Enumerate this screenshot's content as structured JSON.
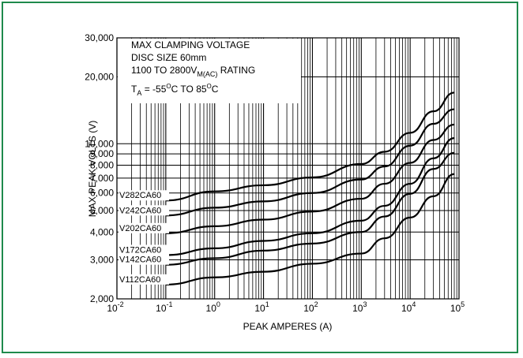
{
  "frame_color": "#1f8a4c",
  "chart_data": {
    "type": "line",
    "title_lines": [
      "MAX CLAMPING VOLTAGE",
      "DISC SIZE 60mm"
    ],
    "rating": {
      "prefix": "1100 TO 2800V",
      "sub": "M(AC)",
      "suffix": " RATING"
    },
    "temp": {
      "t": "T",
      "tsub": "A",
      "mid": " = -55",
      "sup1": "O",
      "mid2": "C TO 85",
      "sup2": "O",
      "end": "C"
    },
    "xlabel": "PEAK AMPERES (A)",
    "ylabel": "MAX PEAK VOLTS (V)",
    "xscale": "log",
    "yscale": "log",
    "xlim": [
      0.01,
      100000
    ],
    "ylim": [
      2000,
      30000
    ],
    "grid": true,
    "x_ticks": [
      {
        "base": "10",
        "exp": "-2",
        "value": 0.01
      },
      {
        "base": "10",
        "exp": "-1",
        "value": 0.1
      },
      {
        "base": "10",
        "exp": "0",
        "value": 1
      },
      {
        "base": "10",
        "exp": "1",
        "value": 10
      },
      {
        "base": "10",
        "exp": "2",
        "value": 100
      },
      {
        "base": "10",
        "exp": "3",
        "value": 1000
      },
      {
        "base": "10",
        "exp": "4",
        "value": 10000
      },
      {
        "base": "10",
        "exp": "5",
        "value": 100000
      }
    ],
    "y_ticks": [
      {
        "label": "2,000",
        "value": 2000
      },
      {
        "label": "3,000",
        "value": 3000
      },
      {
        "label": "4,000",
        "value": 4000
      },
      {
        "label": "5,000",
        "value": 5000
      },
      {
        "label": "6,000",
        "value": 6000
      },
      {
        "label": "7,000",
        "value": 7000
      },
      {
        "label": "8,000",
        "value": 8000
      },
      {
        "label": "9,000",
        "value": 9000
      },
      {
        "label": "10,000",
        "value": 10000
      },
      {
        "label": "20,000",
        "value": 20000
      },
      {
        "label": "30,000",
        "value": 30000
      }
    ],
    "series": [
      {
        "name": "V282CA60",
        "x": [
          0.1,
          1,
          10,
          100,
          1000,
          3000,
          10000,
          30000,
          80000
        ],
        "y": [
          5550,
          6100,
          6500,
          7050,
          8100,
          9200,
          11200,
          14000,
          17000
        ]
      },
      {
        "name": "V242CA60",
        "x": [
          0.1,
          1,
          10,
          100,
          1000,
          3000,
          10000,
          30000,
          80000
        ],
        "y": [
          4750,
          5150,
          5500,
          6000,
          6900,
          7900,
          9800,
          12300,
          14300
        ]
      },
      {
        "name": "V202CA60",
        "x": [
          0.1,
          1,
          10,
          100,
          1000,
          3000,
          10000,
          30000,
          80000
        ],
        "y": [
          3950,
          4250,
          4550,
          4950,
          5650,
          6600,
          8200,
          10400,
          12200
        ]
      },
      {
        "name": "V172CA60",
        "x": [
          0.1,
          1,
          10,
          100,
          1000,
          3000,
          10000,
          30000,
          80000
        ],
        "y": [
          3150,
          3380,
          3650,
          3950,
          4500,
          5250,
          6600,
          8600,
          10600
        ]
      },
      {
        "name": "V142CA60",
        "x": [
          0.1,
          1,
          10,
          100,
          1000,
          3000,
          10000,
          30000,
          80000
        ],
        "y": [
          2850,
          3050,
          3300,
          3550,
          4000,
          4700,
          5950,
          7700,
          9100
        ]
      },
      {
        "name": "V112CA60",
        "x": [
          0.1,
          1,
          10,
          100,
          1000,
          3000,
          10000,
          30000,
          80000
        ],
        "y": [
          2320,
          2500,
          2650,
          2880,
          3200,
          3750,
          4650,
          5800,
          7300
        ]
      }
    ]
  }
}
